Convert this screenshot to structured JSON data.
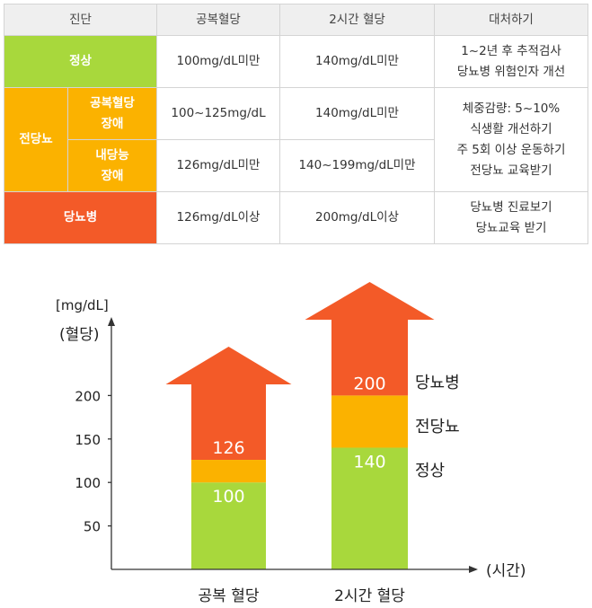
{
  "table": {
    "headers": [
      "진단",
      "공복혈당",
      "2시간 혈당",
      "대처하기"
    ],
    "normal": {
      "label": "정상",
      "fasting": "100mg/dL미만",
      "two_hour": "140mg/dL미만",
      "action": [
        "1~2년 후 추적검사",
        "당뇨병 위험인자 개선"
      ]
    },
    "prediabetes": {
      "label": "전당뇨",
      "ifg": {
        "label": [
          "공복혈당",
          "장애"
        ],
        "fasting": "100~125mg/dL",
        "two_hour": "140mg/dL미만"
      },
      "igt": {
        "label": [
          "내당능",
          "장애"
        ],
        "fasting": "126mg/dL미만",
        "two_hour": "140~199mg/dL미만"
      },
      "action": [
        "체중감량: 5~10%",
        "식생활 개선하기",
        "주 5회 이상 운동하기",
        "전당뇨 교육받기"
      ]
    },
    "diabetes": {
      "label": "당뇨병",
      "fasting": "126mg/dL이상",
      "two_hour": "200mg/dL이상",
      "action": [
        "당뇨병 진료보기",
        "당뇨교육 받기"
      ]
    }
  },
  "chart_data": {
    "type": "bar",
    "unit_label": "[mg/dL]",
    "ylabel": "(혈당)",
    "xlabel": "(시간)",
    "yticks": [
      50,
      100,
      150,
      200
    ],
    "ylim": [
      0,
      250
    ],
    "categories": [
      "공복 혈당",
      "2시간 혈당"
    ],
    "bars": [
      {
        "category": "공복 혈당",
        "normal_top": 100,
        "pre_top": 126,
        "labels": [
          "100",
          "126"
        ]
      },
      {
        "category": "2시간 혈당",
        "normal_top": 140,
        "pre_top": 200,
        "labels": [
          "140",
          "200"
        ]
      }
    ],
    "zone_labels": [
      "정상",
      "전당뇨",
      "당뇨병"
    ],
    "colors": {
      "normal": "#a8d83c",
      "pre": "#fbb200",
      "diabetes": "#f35a28",
      "axis": "#333333"
    }
  }
}
